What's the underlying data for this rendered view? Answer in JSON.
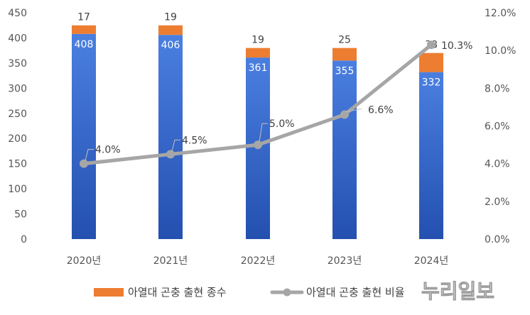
{
  "chart_data": {
    "type": "bar",
    "stacked": true,
    "categories": [
      "2020년",
      "2021년",
      "2022년",
      "2023년",
      "2024년"
    ],
    "series": [
      {
        "values": [
          408,
          406,
          361,
          355,
          332
        ],
        "color": "#3b6ccf",
        "axis": "left"
      },
      {
        "name": "아열대 곤충 출현 종수",
        "values": [
          17,
          19,
          19,
          25,
          38
        ],
        "color": "#ed7d31",
        "axis": "left"
      },
      {
        "name": "아열대 곤충 출현 비율",
        "type": "line",
        "values": [
          4.0,
          4.5,
          5.0,
          6.6,
          10.3
        ],
        "labels": [
          "4.0%",
          "4.5%",
          "5.0%",
          "6.6%",
          "10.3%"
        ],
        "color": "#a6a6a6",
        "axis": "right"
      }
    ],
    "ylim": [
      0,
      450
    ],
    "yticks": [
      "0",
      "50",
      "100",
      "150",
      "200",
      "250",
      "300",
      "350",
      "400",
      "450"
    ],
    "y2lim": [
      0,
      12
    ],
    "y2ticks": [
      "0.0%",
      "2.0%",
      "4.0%",
      "6.0%",
      "8.0%",
      "10.0%",
      "12.0%"
    ],
    "grid": false,
    "legend": "bottom"
  },
  "watermark": "누리일보"
}
